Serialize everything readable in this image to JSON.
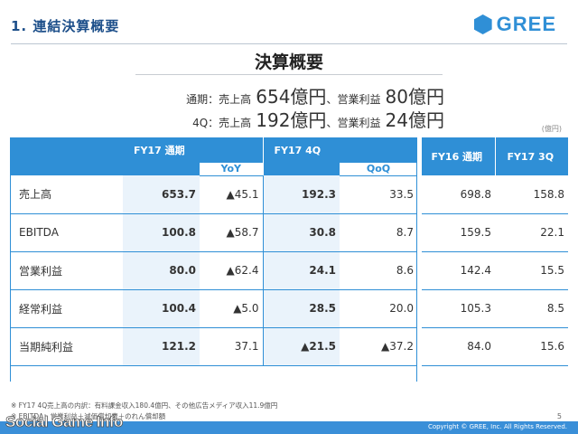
{
  "header": {
    "section_title": "1. 連結決算概要",
    "logo_text": "GREE",
    "accent_color": "#2f8fd6"
  },
  "main_title": "決算概要",
  "summary": {
    "line1": {
      "period": "通期：売上高",
      "sales": "654億円",
      "sep": "、営業利益",
      "op": "80億円"
    },
    "line2": {
      "period": "4Q：売上高",
      "sales": "192億円",
      "sep": "、営業利益",
      "op": "24億円"
    }
  },
  "unit": "(億円)",
  "table": {
    "headers": {
      "fy17_full": "FY17 通期",
      "yoy": "YoY",
      "fy17_4q": "FY17 4Q",
      "qoq": "QoQ",
      "fy16_full": "FY16 通期",
      "fy17_3q": "FY17 3Q"
    },
    "rows": [
      {
        "label": "売上高",
        "fy17_full": "653.7",
        "yoy": "▲45.1",
        "fy17_4q": "192.3",
        "qoq": "33.5",
        "fy16_full": "698.8",
        "fy17_3q": "158.8"
      },
      {
        "label": "EBITDA",
        "fy17_full": "100.8",
        "yoy": "▲58.7",
        "fy17_4q": "30.8",
        "qoq": "8.7",
        "fy16_full": "159.5",
        "fy17_3q": "22.1"
      },
      {
        "label": "営業利益",
        "fy17_full": "80.0",
        "yoy": "▲62.4",
        "fy17_4q": "24.1",
        "qoq": "8.6",
        "fy16_full": "142.4",
        "fy17_3q": "15.5"
      },
      {
        "label": "経常利益",
        "fy17_full": "100.4",
        "yoy": "▲5.0",
        "fy17_4q": "28.5",
        "qoq": "20.0",
        "fy16_full": "105.3",
        "fy17_3q": "8.5"
      },
      {
        "label": "当期純利益",
        "fy17_full": "121.2",
        "yoy": "37.1",
        "fy17_4q": "▲21.5",
        "qoq": "▲37.2",
        "fy16_full": "84.0",
        "fy17_3q": "15.6"
      }
    ]
  },
  "footnotes": {
    "f1": "※ FY17 4Q売上高の内訳：有料課金収入180.4億円、その他広告メディア収入11.9億円",
    "f2": "※ EBITDA：営業利益＋減価償却費＋のれん償却額"
  },
  "page_number": "5",
  "copyright": "Copyright © GREE, Inc. All Rights Reserved.",
  "watermark": "Social Game Info"
}
